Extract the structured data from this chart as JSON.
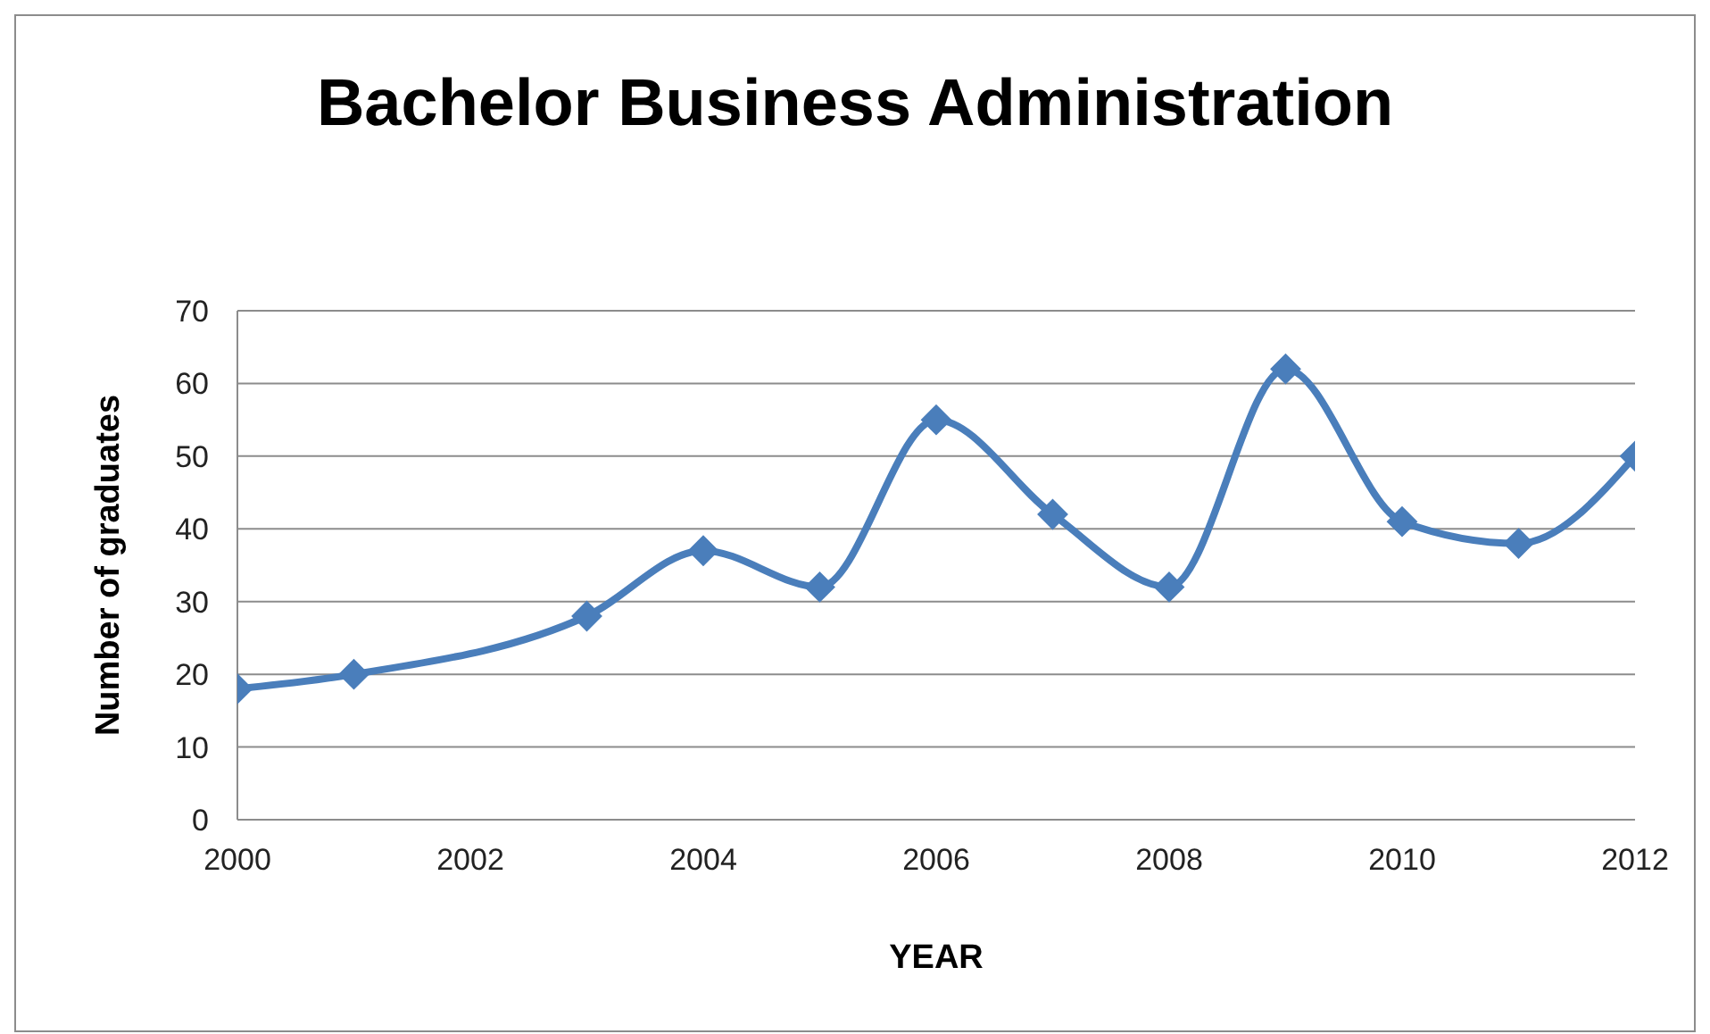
{
  "chart_data": {
    "type": "line",
    "title": "Bachelor Business Administration",
    "xlabel": "YEAR",
    "ylabel": "Number of graduates",
    "x": [
      2000,
      2001,
      2003,
      2004,
      2005,
      2006,
      2007,
      2008,
      2009,
      2010,
      2011,
      2012
    ],
    "series": [
      {
        "color": "#4a7ebb",
        "values": [
          18,
          20,
          28,
          37,
          32,
          55,
          42,
          32,
          62,
          41,
          38,
          50
        ]
      }
    ],
    "xlim": [
      2000,
      2012
    ],
    "xticks": [
      2000,
      2002,
      2004,
      2006,
      2008,
      2010,
      2012
    ],
    "ylim": [
      0,
      70
    ],
    "yticks": [
      0,
      10,
      20,
      30,
      40,
      50,
      60,
      70
    ],
    "grid": "y",
    "marker": "diamond",
    "line_style": "solid"
  }
}
